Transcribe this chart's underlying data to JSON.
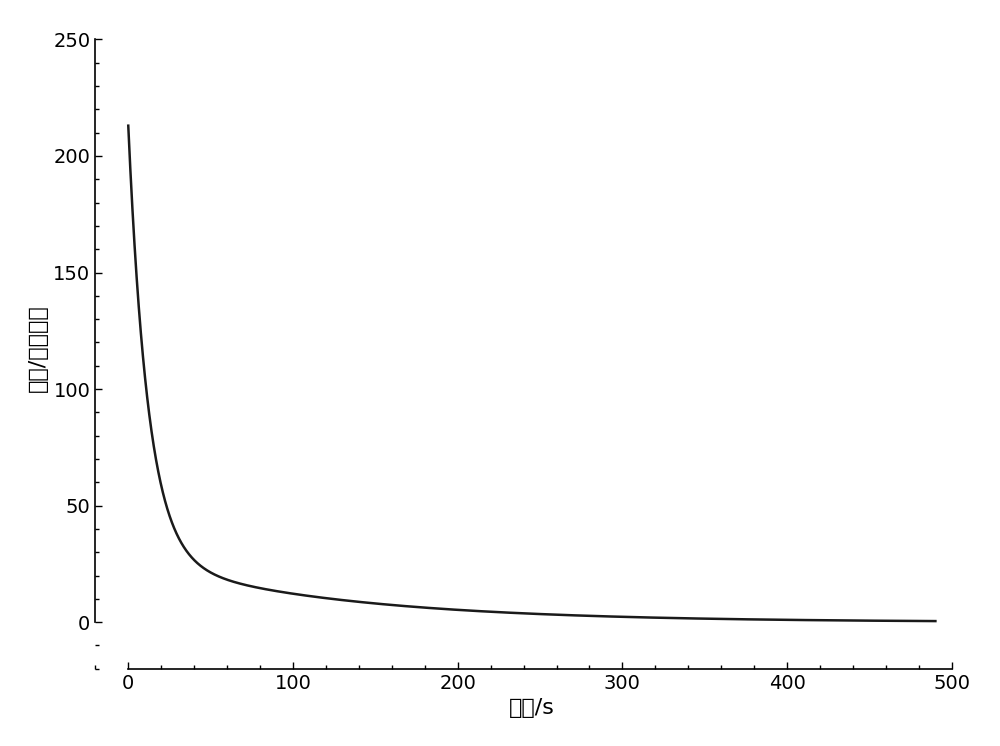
{
  "xlabel": "时间/s",
  "ylabel": "能量/任意单位",
  "xlim": [
    -20,
    510
  ],
  "ylim": [
    -20,
    255
  ],
  "xticks": [
    0,
    100,
    200,
    300,
    400,
    500
  ],
  "yticks": [
    0,
    50,
    100,
    150,
    200,
    250
  ],
  "line_color": "#1a1a1a",
  "line_width": 1.8,
  "background_color": "#ffffff",
  "decay_A1": 185.0,
  "decay_tau1": 12.0,
  "decay_A2": 28.0,
  "decay_tau2": 120.0,
  "x_start": 0,
  "x_end": 490,
  "font_size_label": 16,
  "font_size_tick": 14
}
